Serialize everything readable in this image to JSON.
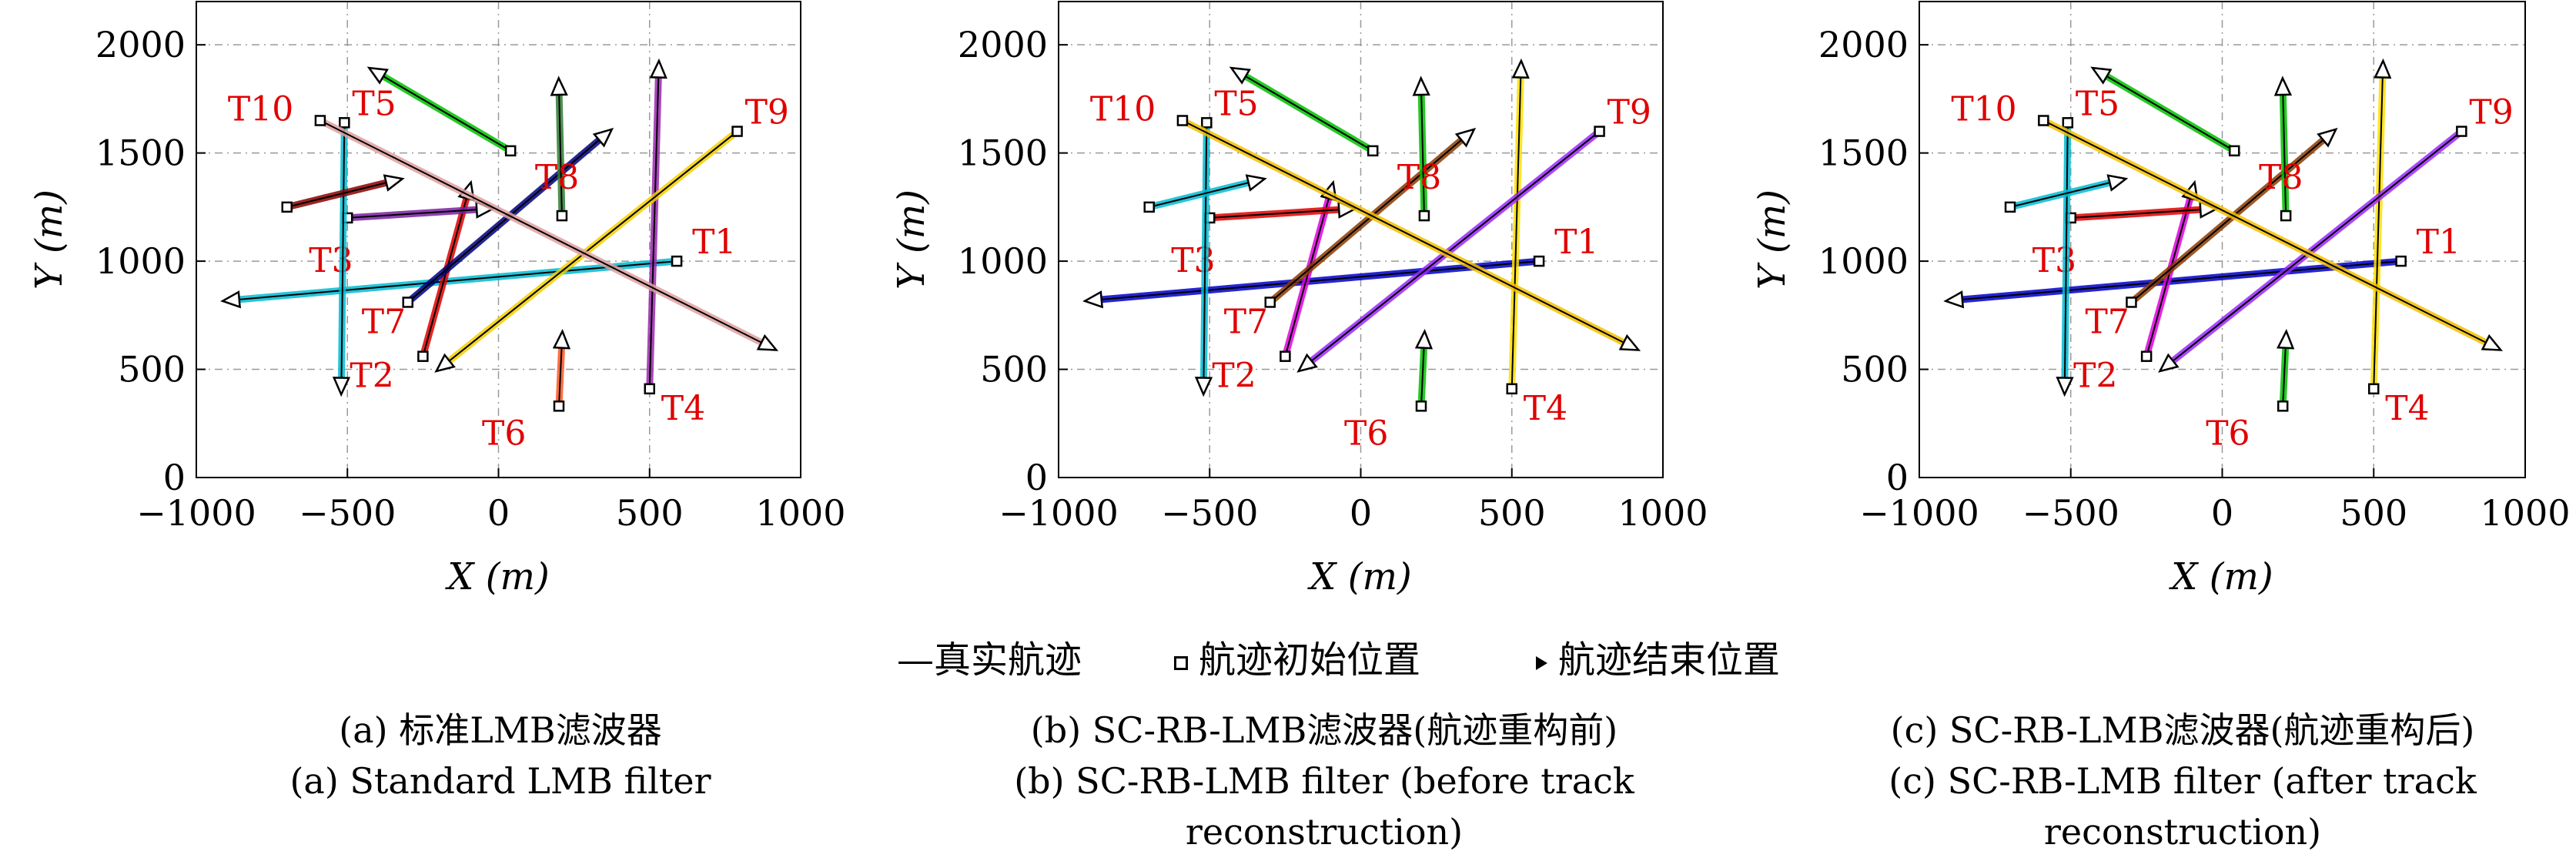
{
  "legend": {
    "true_track": "真实航迹",
    "start_position": "航迹初始位置",
    "end_position": "航迹结束位置"
  },
  "captions": [
    [
      "(a) 标准LMB滤波器",
      "(a) Standard LMB filter"
    ],
    [
      "(b) SC-RB-LMB滤波器(航迹重构前)",
      "(b) SC-RB-LMB filter (before track",
      "reconstruction)"
    ],
    [
      "(c) SC-RB-LMB滤波器(航迹重构后)",
      "(c) SC-RB-LMB filter (after track",
      "reconstruction)"
    ]
  ],
  "chart_data": [
    {
      "type": "line",
      "subplot": "a",
      "xlabel": "X (m)",
      "ylabel": "Y (m)",
      "xlim": [
        -1000,
        1000
      ],
      "ylim": [
        0,
        2200
      ],
      "xticks": [
        "−1000",
        "−500",
        "0",
        "500",
        "1000"
      ],
      "yticks": [
        "0",
        "500",
        "1000",
        "1500",
        "2000"
      ],
      "grid": true,
      "colors": {
        "T1": "#00bcd4",
        "T2": "#e00000",
        "T3": "#7a1fa2",
        "T4": "#9c27b0",
        "T5": "#00bcd4",
        "T6": "#ff5722",
        "T7": "#000080",
        "T8": "#2e7d32",
        "T9": "#f5d000",
        "T10": "#e0a0a0",
        "T11": "#00c000",
        "T12": "#8b0000"
      }
    },
    {
      "type": "line",
      "subplot": "b",
      "xlabel": "X (m)",
      "ylabel": "Y (m)",
      "xlim": [
        -1000,
        1000
      ],
      "ylim": [
        0,
        2200
      ],
      "xticks": [
        "−1000",
        "−500",
        "0",
        "500",
        "1000"
      ],
      "yticks": [
        "0",
        "500",
        "1000",
        "1500",
        "2000"
      ],
      "grid": true,
      "colors": {
        "T1": "#0000cc",
        "T2": "#e000e0",
        "T3": "#e00000",
        "T4": "#ffe000",
        "T5": "#00bcd4",
        "T6": "#00c000",
        "T7": "#8b3a00",
        "T8": "#00c000",
        "T9": "#9c27ff",
        "T10": "#f5c000",
        "T11": "#00c000",
        "T12": "#00bcd4"
      }
    },
    {
      "type": "line",
      "subplot": "c",
      "xlabel": "X (m)",
      "ylabel": "Y (m)",
      "xlim": [
        -1000,
        1000
      ],
      "ylim": [
        0,
        2200
      ],
      "xticks": [
        "−1000",
        "−500",
        "0",
        "500",
        "1000"
      ],
      "yticks": [
        "0",
        "500",
        "1000",
        "1500",
        "2000"
      ],
      "grid": true,
      "colors": {
        "T1": "#0000cc",
        "T2": "#e000e0",
        "T3": "#e00000",
        "T4": "#ffe000",
        "T5": "#00bcd4",
        "T6": "#00c000",
        "T7": "#8b3a00",
        "T8": "#00c000",
        "T9": "#9c27ff",
        "T10": "#f5c000",
        "T11": "#00c000",
        "T12": "#00bcd4"
      }
    }
  ],
  "tracks": [
    {
      "id": "T1",
      "label": "T1",
      "start": [
        590,
        1000
      ],
      "end": [
        -880,
        820
      ]
    },
    {
      "id": "T2",
      "label": "T2",
      "start": [
        -250,
        560
      ],
      "end": [
        -100,
        1320
      ]
    },
    {
      "id": "T3",
      "label": "T3",
      "start": [
        -500,
        1200
      ],
      "end": [
        -50,
        1240
      ]
    },
    {
      "id": "T4",
      "label": "T4",
      "start": [
        500,
        410
      ],
      "end": [
        530,
        1880
      ]
    },
    {
      "id": "T5",
      "label": "T5",
      "start": [
        -510,
        1640
      ],
      "end": [
        -520,
        430
      ]
    },
    {
      "id": "T6",
      "label": "T6",
      "start": [
        200,
        330
      ],
      "end": [
        210,
        630
      ]
    },
    {
      "id": "T7",
      "label": "T7",
      "start": [
        -300,
        810
      ],
      "end": [
        350,
        1580
      ]
    },
    {
      "id": "T8",
      "label": "T8",
      "start": [
        210,
        1210
      ],
      "end": [
        200,
        1800
      ]
    },
    {
      "id": "T9",
      "label": "T9",
      "start": [
        790,
        1600
      ],
      "end": [
        -180,
        520
      ]
    },
    {
      "id": "T10",
      "label": "T10",
      "start": [
        -590,
        1650
      ],
      "end": [
        890,
        610
      ]
    },
    {
      "id": "T11",
      "label": "",
      "start": [
        40,
        1510
      ],
      "end": [
        -400,
        1870
      ]
    },
    {
      "id": "T12",
      "label": "",
      "start": [
        -700,
        1250
      ],
      "end": [
        -350,
        1370
      ]
    }
  ]
}
